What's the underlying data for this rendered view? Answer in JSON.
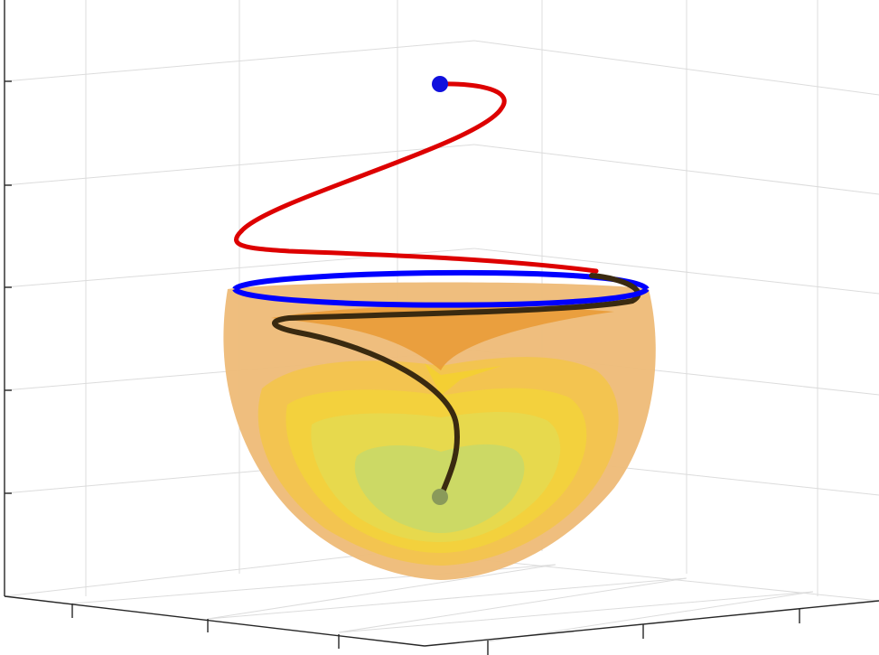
{
  "figure": {
    "type": "3d-surface-with-trajectory",
    "grid": true,
    "colors": {
      "background": "#ffffff",
      "grid": "#dcdcdc",
      "axis": "#262626",
      "surface_outer": "#eebb77",
      "surface_band_1": "#f3c648",
      "surface_band_2": "#f2d43a",
      "surface_band_3": "#e4da50",
      "surface_center": "#c9d868",
      "inner_cone": "#e99a33",
      "trajectory_above": "#dd0000",
      "trajectory_below": "#3a2a10",
      "boundary_circle": "#0000ff",
      "start_marker": "#1010dd",
      "end_marker": "#8a9a5a"
    }
  }
}
